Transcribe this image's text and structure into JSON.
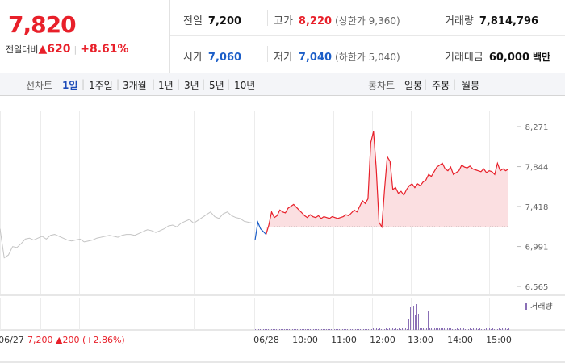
{
  "quote": {
    "current_price": "7,820",
    "change_label": "전일대비",
    "change_value": "620",
    "change_pct": "+8.61%",
    "prev_close_label": "전일",
    "prev_close": "7,200",
    "high_label": "고가",
    "high": "8,220",
    "upper_limit": "(상한가 9,360)",
    "volume_label": "거래량",
    "volume": "7,814,796",
    "open_label": "시가",
    "open": "7,060",
    "low_label": "저가",
    "low": "7,040",
    "lower_limit": "(하한가 5,040)",
    "amount_label": "거래대금",
    "amount": "60,000",
    "amount_unit": "백만"
  },
  "line_chart_tabs": {
    "label": "선차트",
    "items": [
      "1일",
      "1주일",
      "3개월",
      "1년",
      "3년",
      "5년",
      "10년"
    ],
    "selected": "1일"
  },
  "candle_chart_tabs": {
    "label": "봉차트",
    "items": [
      "일봉",
      "주봉",
      "월봉"
    ]
  },
  "colors": {
    "up": "#e8202a",
    "down": "#1c5ec8",
    "prev_day_line": "#c4c4c4",
    "area_fill": "#fbdfe1",
    "volume_bar": "#8a6fb6"
  },
  "chart_data": {
    "type": "line",
    "y_ticks": [
      "8,271",
      "7,844",
      "7,418",
      "6,991",
      "6,565"
    ],
    "ylim": [
      6565,
      8271
    ],
    "reference_line": 7200,
    "x_tick_labels": [
      "06/27",
      "06/28",
      "10:00",
      "11:00",
      "12:00",
      "13:00",
      "14:00",
      "15:00"
    ],
    "prev_day_summary": {
      "date": "06/27",
      "close": "7,200",
      "change": "200",
      "change_pct": "(+2.86%)"
    },
    "volume_legend": "거래량",
    "series": [
      {
        "x": [
          0,
          1,
          2,
          3,
          4,
          5,
          6,
          7,
          8,
          9,
          10,
          11,
          12,
          13,
          14,
          15,
          16,
          17,
          18,
          19,
          20,
          21,
          22,
          23,
          24,
          25,
          26,
          27,
          28,
          29,
          30,
          31,
          32,
          33,
          34,
          35,
          36,
          37,
          38,
          39,
          40,
          41,
          42,
          43,
          44,
          45,
          46,
          47,
          48,
          49,
          50,
          51,
          52,
          53,
          54,
          55,
          56,
          57,
          58,
          59,
          60
        ],
        "values": [
          7180,
          6870,
          6900,
          6990,
          6980,
          7020,
          7070,
          7080,
          7060,
          7080,
          7100,
          7070,
          7110,
          7120,
          7100,
          7080,
          7060,
          7050,
          7060,
          7070,
          7040,
          7050,
          7060,
          7080,
          7090,
          7100,
          7110,
          7100,
          7090,
          7110,
          7120,
          7120,
          7110,
          7130,
          7150,
          7170,
          7160,
          7140,
          7160,
          7180,
          7210,
          7220,
          7200,
          7240,
          7260,
          7280,
          7240,
          7270,
          7300,
          7330,
          7360,
          7310,
          7290,
          7340,
          7360,
          7320,
          7300,
          7290,
          7260,
          7250,
          7240
        ]
      },
      {
        "x": [
          0,
          1,
          2,
          3,
          4
        ],
        "values": [
          7060,
          7250,
          7180,
          7150,
          7120
        ]
      },
      {
        "x": [
          4,
          5,
          6,
          7,
          8,
          9,
          10,
          11,
          12,
          13,
          14,
          15,
          16,
          17,
          18,
          19,
          20,
          21,
          22,
          23,
          24,
          25,
          26,
          27,
          28,
          29,
          30,
          31,
          32,
          33,
          34,
          35,
          36,
          37,
          38,
          39,
          40,
          41,
          42,
          43,
          44,
          45,
          46,
          47,
          48,
          49,
          50,
          51,
          52,
          53,
          54,
          55,
          56,
          57,
          58,
          59,
          60,
          61,
          62,
          63,
          64,
          65,
          66,
          67,
          68,
          69,
          70,
          71,
          72,
          73,
          74,
          75,
          76,
          77,
          78,
          79,
          80,
          81,
          82,
          83,
          84,
          85,
          86,
          87,
          88,
          89,
          90,
          91,
          92
        ],
        "values": [
          7120,
          7220,
          7360,
          7300,
          7320,
          7380,
          7360,
          7350,
          7400,
          7420,
          7440,
          7410,
          7380,
          7350,
          7320,
          7300,
          7330,
          7310,
          7300,
          7320,
          7290,
          7310,
          7300,
          7290,
          7310,
          7300,
          7290,
          7300,
          7310,
          7330,
          7320,
          7350,
          7380,
          7360,
          7420,
          7480,
          7450,
          7500,
          8100,
          8220,
          7820,
          7250,
          7200,
          7600,
          7950,
          7900,
          7600,
          7620,
          7560,
          7580,
          7540,
          7600,
          7640,
          7660,
          7620,
          7660,
          7640,
          7680,
          7700,
          7760,
          7740,
          7790,
          7840,
          7860,
          7880,
          7820,
          7800,
          7840,
          7760,
          7780,
          7800,
          7860,
          7840,
          7830,
          7850,
          7820,
          7810,
          7800,
          7790,
          7820,
          7780,
          7800,
          7790,
          7760,
          7880,
          7800,
          7820,
          7800,
          7820
        ]
      }
    ]
  }
}
